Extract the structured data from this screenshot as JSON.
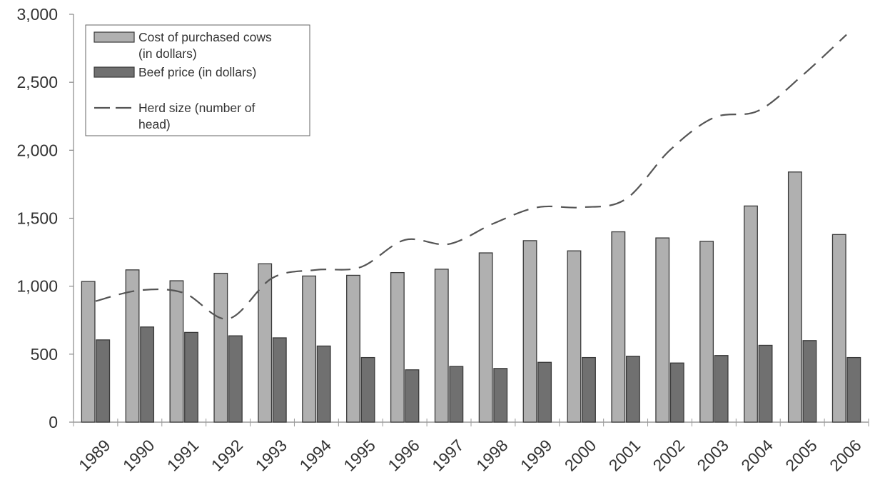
{
  "chart_data": {
    "type": "bar",
    "categories": [
      "1989",
      "1990",
      "1991",
      "1992",
      "1993",
      "1994",
      "1995",
      "1996",
      "1997",
      "1998",
      "1999",
      "2000",
      "2001",
      "2002",
      "2003",
      "2004",
      "2005",
      "2006"
    ],
    "series": [
      {
        "name": "Cost of purchased cows (in dollars)",
        "kind": "bar",
        "color": "#b0b0b0",
        "values": [
          1035,
          1120,
          1040,
          1095,
          1165,
          1075,
          1080,
          1100,
          1125,
          1245,
          1335,
          1260,
          1400,
          1355,
          1330,
          1590,
          1840,
          1380
        ]
      },
      {
        "name": "Beef price (in dollars)",
        "kind": "bar",
        "color": "#707070",
        "values": [
          605,
          700,
          660,
          635,
          620,
          560,
          475,
          385,
          410,
          395,
          440,
          475,
          485,
          435,
          490,
          565,
          600,
          475
        ]
      },
      {
        "name": "Herd size (number of head)",
        "kind": "line",
        "dashed": true,
        "color": "#555555",
        "values": [
          890,
          970,
          950,
          760,
          1060,
          1120,
          1140,
          1340,
          1310,
          1460,
          1580,
          1580,
          1640,
          2000,
          2240,
          2290,
          2550,
          2850
        ]
      }
    ],
    "ylim": [
      0,
      3000
    ],
    "yticks": [
      0,
      500,
      1000,
      1500,
      2000,
      2500,
      3000
    ],
    "ytick_labels": [
      "0",
      "500",
      "1,000",
      "1,500",
      "2,000",
      "2,500",
      "3,000"
    ],
    "legend_lines": [
      [
        "Cost of purchased cows",
        "(in dollars)"
      ],
      [
        "Beef price (in dollars)"
      ],
      [
        "Herd size (number of",
        "head)"
      ]
    ],
    "legend_position": "top-left",
    "grid": false,
    "title": "",
    "xlabel": "",
    "ylabel": ""
  }
}
